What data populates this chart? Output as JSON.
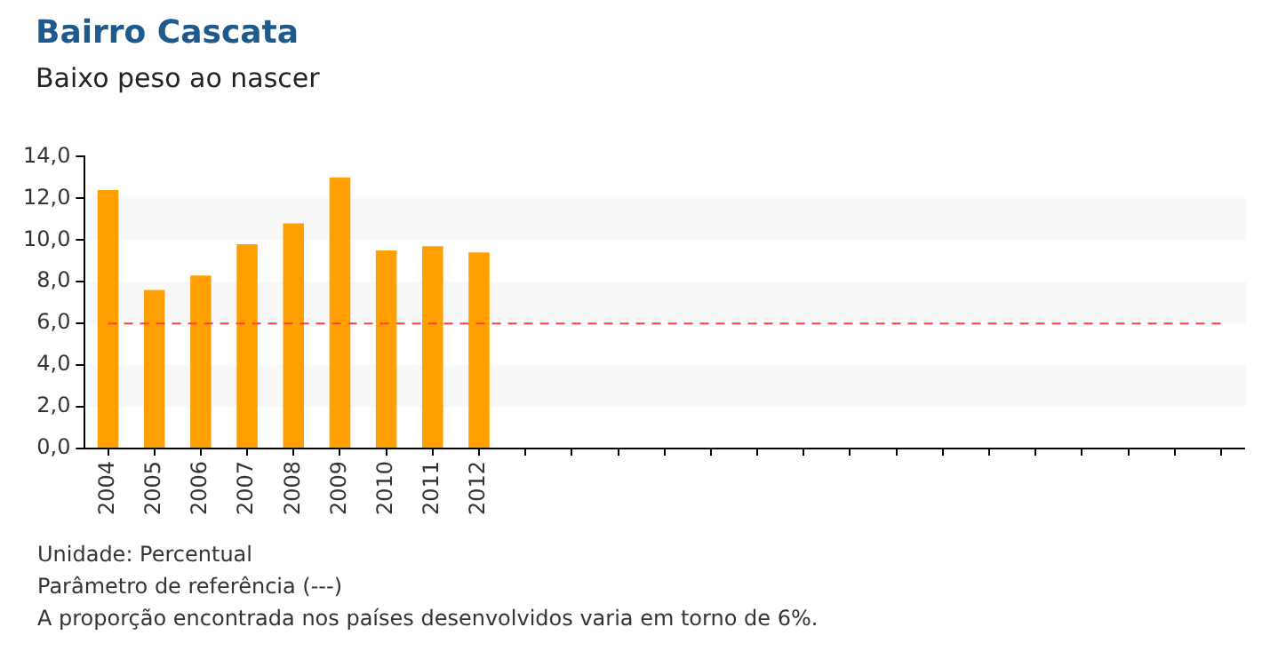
{
  "chart_data": {
    "type": "bar",
    "title": "Bairro Cascata",
    "subtitle": "Baixo peso ao nascer",
    "categories": [
      "2004",
      "2005",
      "2006",
      "2007",
      "2008",
      "2009",
      "2010",
      "2011",
      "2012",
      null,
      null,
      null,
      null,
      null,
      null,
      null,
      null,
      null,
      null,
      null,
      null,
      null,
      null,
      null,
      null
    ],
    "values": [
      12.4,
      7.6,
      8.3,
      9.8,
      10.8,
      13.0,
      9.5,
      9.7,
      9.4,
      null,
      null,
      null,
      null,
      null,
      null,
      null,
      null,
      null,
      null,
      null,
      null,
      null,
      null,
      null,
      null
    ],
    "color": "#ff9f00",
    "ylim": [
      0,
      14
    ],
    "yticks": [
      {
        "value": 0,
        "label": "0,0"
      },
      {
        "value": 2,
        "label": "2,0"
      },
      {
        "value": 4,
        "label": "4,0"
      },
      {
        "value": 6,
        "label": "6,0"
      },
      {
        "value": 8,
        "label": "8,0"
      },
      {
        "value": 10,
        "label": "10,0"
      },
      {
        "value": 12,
        "label": "12,0"
      },
      {
        "value": 14,
        "label": "14,0"
      }
    ],
    "ref_lines": [
      {
        "axis": "y",
        "value": 6,
        "color": "#ff4040",
        "line_style": "dashed"
      }
    ],
    "annotations": [
      "Unidade: Percentual",
      "Parâmetro de referência (---)",
      "A proporção encontrada nos países desenvolvidos varia em torno de 6%."
    ]
  }
}
